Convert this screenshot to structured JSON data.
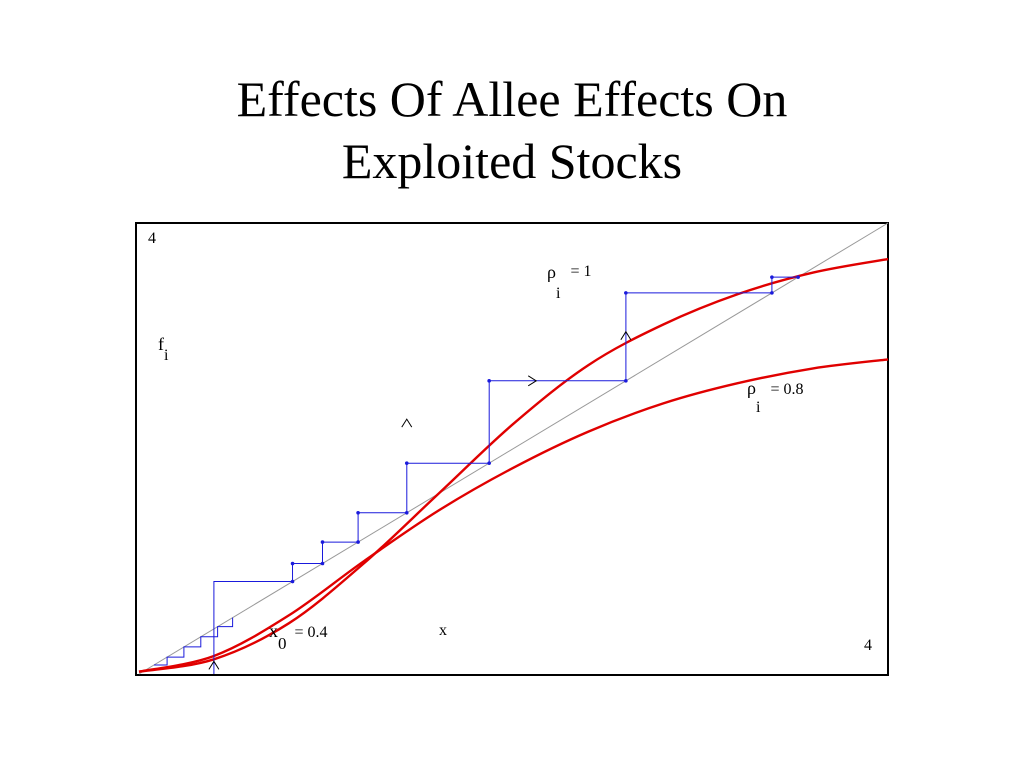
{
  "slide": {
    "title_line1": "Effects Of Allee Effects On",
    "title_line2": "Exploited Stocks"
  },
  "colors": {
    "curve": "#e00000",
    "cobweb": "#1a1adc",
    "diagonal": "#999999",
    "text": "#000000"
  },
  "chart_data": {
    "type": "line",
    "x_range": [
      0,
      4
    ],
    "y_range": [
      0,
      4
    ],
    "ytick_label": "4",
    "xtick_label": "4",
    "xlabel": "x",
    "ylabel": {
      "main": "f",
      "sub": "i"
    },
    "annotations": [
      {
        "main": "ρ",
        "sub": "i",
        "value": "=  1"
      },
      {
        "main": "ρ",
        "sub": "i",
        "value": "=  0.8"
      },
      {
        "main": "x",
        "sub": "0",
        "value": "= 0.4"
      }
    ],
    "series": [
      {
        "name": "ρi = 1",
        "rho": 1.0,
        "x": [
          0,
          0.4,
          0.8,
          1.2,
          1.6,
          2.0,
          2.4,
          2.8,
          3.2,
          3.6,
          4.0
        ],
        "y": [
          0.02,
          0.13,
          0.45,
          0.98,
          1.6,
          2.22,
          2.74,
          3.1,
          3.37,
          3.56,
          3.68
        ]
      },
      {
        "name": "ρi = 0.8",
        "rho": 0.8,
        "x": [
          0,
          0.4,
          0.8,
          1.2,
          1.6,
          2.0,
          2.4,
          2.8,
          3.2,
          3.6,
          4.0
        ],
        "y": [
          0.02,
          0.16,
          0.52,
          1.0,
          1.45,
          1.83,
          2.15,
          2.4,
          2.58,
          2.71,
          2.79
        ]
      },
      {
        "name": "diagonal",
        "x": [
          0,
          4
        ],
        "y": [
          0,
          4
        ]
      }
    ],
    "cobweb_fixed_point_rho1": 3.55,
    "cobweb_steps_rho08": [
      [
        0.5,
        0.25
      ],
      [
        0.5,
        0.43
      ]
    ],
    "cobweb": {
      "x0": 0.4,
      "points_rho1": [
        [
          0.82,
          0.82
        ],
        [
          0.82,
          0.98
        ],
        [
          0.98,
          0.98
        ],
        [
          0.98,
          1.17
        ],
        [
          1.17,
          1.17
        ],
        [
          1.17,
          1.43
        ],
        [
          1.43,
          1.43
        ],
        [
          1.43,
          1.87
        ],
        [
          1.87,
          1.87
        ],
        [
          1.87,
          2.6
        ],
        [
          2.6,
          2.6
        ],
        [
          2.6,
          3.38
        ],
        [
          3.38,
          3.38
        ],
        [
          3.38,
          3.52
        ],
        [
          3.52,
          3.52
        ]
      ]
    }
  }
}
